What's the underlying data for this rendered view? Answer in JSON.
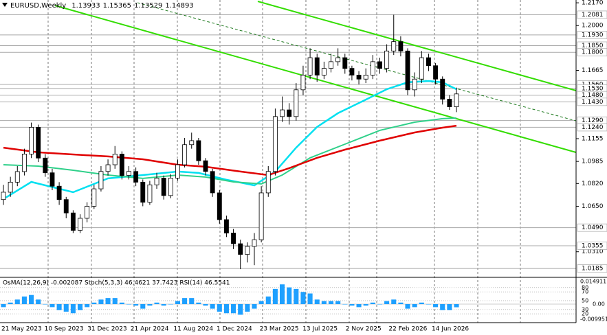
{
  "chart_data": {
    "type": "candlestick",
    "title": "EURUSD,Weekly",
    "indicator_label": "OsMA(12,26,9) -0.002087 Stoch(5,3,3) 46.4621 37.7423 RSI(14) 46.5541",
    "x_labels": [
      "21 May 2023",
      "10 Sep 2023",
      "31 Dec 2023",
      "21 Apr 2024",
      "11 Aug 2024",
      "1 Dec 2024",
      "23 Mar 2025",
      "13 Jul 2025",
      "2 Nov 2025",
      "22 Feb 2026",
      "14 Jun 2026"
    ],
    "ylim": [
      1.0124,
      1.2191
    ],
    "yticks": [
      {
        "value": 1.217,
        "label": "1.2170"
      },
      {
        "value": 1.2,
        "label": "1.2000"
      },
      {
        "value": 1.1665,
        "label": "1.1665"
      },
      {
        "value": 1.1155,
        "label": "1.1155"
      },
      {
        "value": 1.0985,
        "label": "1.0985"
      },
      {
        "value": 1.082,
        "label": "1.0820"
      },
      {
        "value": 1.065,
        "label": "1.0650"
      },
      {
        "value": 1.031,
        "label": "1.0310"
      }
    ],
    "levels": [
      {
        "value": 1.2081,
        "label": "1.2081"
      },
      {
        "value": 1.193,
        "label": "1.1930"
      },
      {
        "value": 1.185,
        "label": "1.1850"
      },
      {
        "value": 1.18,
        "label": "1.1800"
      },
      {
        "value": 1.156,
        "label": "1.1560"
      },
      {
        "value": 1.153,
        "label": "1.1530"
      },
      {
        "value": 1.148,
        "label": "1.1480"
      },
      {
        "value": 1.143,
        "label": "1.1430"
      },
      {
        "value": 1.129,
        "label": "1.1290"
      },
      {
        "value": 1.124,
        "label": "1.1240"
      },
      {
        "value": 1.049,
        "label": "1.0490"
      },
      {
        "value": 1.0355,
        "label": "1.0355"
      },
      {
        "value": 1.0185,
        "label": "1.0185"
      }
    ],
    "up_color": "#ffffff",
    "down_color": "#000000",
    "candles": [
      [
        1.07,
        1.081,
        1.066,
        1.0755
      ],
      [
        1.0755,
        1.087,
        1.072,
        1.083
      ],
      [
        1.083,
        1.095,
        1.08,
        1.0909
      ],
      [
        1.0909,
        1.108,
        1.088,
        1.104
      ],
      [
        1.104,
        1.1275,
        1.101,
        1.124
      ],
      [
        1.124,
        1.126,
        1.098,
        1.101
      ],
      [
        1.101,
        1.104,
        1.087,
        1.09
      ],
      [
        1.09,
        1.093,
        1.077,
        1.08
      ],
      [
        1.08,
        1.083,
        1.066,
        1.07
      ],
      [
        1.07,
        1.072,
        1.056,
        1.06
      ],
      [
        1.06,
        1.062,
        1.045,
        1.047
      ],
      [
        1.047,
        1.059,
        1.045,
        1.056
      ],
      [
        1.056,
        1.068,
        1.053,
        1.065
      ],
      [
        1.065,
        1.081,
        1.063,
        1.078
      ],
      [
        1.078,
        1.095,
        1.076,
        1.091
      ],
      [
        1.091,
        1.1,
        1.088,
        1.096
      ],
      [
        1.096,
        1.11,
        1.093,
        1.104
      ],
      [
        1.104,
        1.106,
        1.085,
        1.088
      ],
      [
        1.088,
        1.095,
        1.085,
        1.091
      ],
      [
        1.091,
        1.094,
        1.08,
        1.083
      ],
      [
        1.083,
        1.085,
        1.065,
        1.068
      ],
      [
        1.068,
        1.084,
        1.066,
        1.081
      ],
      [
        1.081,
        1.09,
        1.078,
        1.086
      ],
      [
        1.086,
        1.088,
        1.07,
        1.073
      ],
      [
        1.073,
        1.089,
        1.071,
        1.086
      ],
      [
        1.086,
        1.1,
        1.084,
        1.096
      ],
      [
        1.096,
        1.116,
        1.094,
        1.111
      ],
      [
        1.111,
        1.12,
        1.108,
        1.114
      ],
      [
        1.114,
        1.116,
        1.096,
        1.099
      ],
      [
        1.099,
        1.101,
        1.088,
        1.091
      ],
      [
        1.091,
        1.093,
        1.072,
        1.075
      ],
      [
        1.075,
        1.077,
        1.052,
        1.055
      ],
      [
        1.055,
        1.058,
        1.042,
        1.045
      ],
      [
        1.045,
        1.048,
        1.033,
        1.037
      ],
      [
        1.037,
        1.04,
        1.018,
        1.029
      ],
      [
        1.029,
        1.038,
        1.023,
        1.035
      ],
      [
        1.035,
        1.045,
        1.021,
        1.04
      ],
      [
        1.04,
        1.08,
        1.038,
        1.075
      ],
      [
        1.075,
        1.095,
        1.072,
        1.091
      ],
      [
        1.091,
        1.138,
        1.088,
        1.132
      ],
      [
        1.132,
        1.147,
        1.128,
        1.137
      ],
      [
        1.137,
        1.142,
        1.126,
        1.132
      ],
      [
        1.132,
        1.157,
        1.129,
        1.152
      ],
      [
        1.152,
        1.17,
        1.148,
        1.163
      ],
      [
        1.163,
        1.183,
        1.16,
        1.176
      ],
      [
        1.176,
        1.179,
        1.158,
        1.163
      ],
      [
        1.163,
        1.173,
        1.16,
        1.168
      ],
      [
        1.168,
        1.179,
        1.165,
        1.173
      ],
      [
        1.173,
        1.183,
        1.17,
        1.176
      ],
      [
        1.176,
        1.179,
        1.164,
        1.168
      ],
      [
        1.168,
        1.17,
        1.159,
        1.163
      ],
      [
        1.163,
        1.166,
        1.156,
        1.16
      ],
      [
        1.16,
        1.168,
        1.157,
        1.163
      ],
      [
        1.163,
        1.178,
        1.16,
        1.173
      ],
      [
        1.173,
        1.176,
        1.164,
        1.168
      ],
      [
        1.168,
        1.186,
        1.165,
        1.181
      ],
      [
        1.181,
        1.2081,
        1.178,
        1.188
      ],
      [
        1.188,
        1.192,
        1.177,
        1.181
      ],
      [
        1.181,
        1.183,
        1.148,
        1.152
      ],
      [
        1.152,
        1.165,
        1.147,
        1.16
      ],
      [
        1.16,
        1.181,
        1.157,
        1.176
      ],
      [
        1.176,
        1.179,
        1.166,
        1.17
      ],
      [
        1.17,
        1.172,
        1.156,
        1.16
      ],
      [
        1.16,
        1.162,
        1.141,
        1.145
      ],
      [
        1.145,
        1.148,
        1.137,
        1.1393
      ],
      [
        1.13933,
        1.15365,
        1.13529,
        1.14893
      ]
    ],
    "series": [
      {
        "color": "#00e0f0",
        "x": [
          0,
          4,
          10,
          15,
          20,
          25,
          28,
          32,
          36,
          39,
          42,
          45,
          48,
          52,
          55,
          58,
          61,
          63,
          65
        ],
        "values": [
          1.0704,
          1.0832,
          1.0755,
          1.0858,
          1.0883,
          1.0909,
          1.0899,
          1.0848,
          1.0806,
          1.0909,
          1.1088,
          1.1242,
          1.1345,
          1.1447,
          1.1524,
          1.1576,
          1.1586,
          1.1576,
          1.1524
        ]
      },
      {
        "color": "#2fd08a",
        "x": [
          0,
          5,
          10,
          15,
          20,
          25,
          29,
          33,
          37,
          40,
          44,
          49,
          54,
          59,
          63,
          65
        ],
        "values": [
          1.096,
          1.095,
          1.0919,
          1.0883,
          1.0858,
          1.0883,
          1.0868,
          1.0832,
          1.0817,
          1.0883,
          1.1012,
          1.1114,
          1.1217,
          1.1278,
          1.1304,
          1.1309
        ]
      },
      {
        "color": "#e00000",
        "x": [
          0,
          5,
          10,
          15,
          20,
          25,
          29,
          34,
          38,
          41,
          45,
          49,
          54,
          59,
          63,
          65
        ],
        "values": [
          1.1088,
          1.1053,
          1.1037,
          1.1022,
          1.1001,
          1.096,
          1.0945,
          1.0909,
          1.0883,
          1.0935,
          1.1012,
          1.1073,
          1.114,
          1.1201,
          1.1237,
          1.1252
        ]
      }
    ],
    "osma": [
      -0.002,
      0.001,
      0.003,
      0.005,
      0.006,
      0.003,
      0,
      -0.002,
      -0.004,
      -0.005,
      -0.006,
      -0.004,
      -0.002,
      0.001,
      0.003,
      0.004,
      0.004,
      0.001,
      0,
      -0.001,
      -0.003,
      -0.001,
      0.001,
      -0.001,
      0,
      0.002,
      0.004,
      0.004,
      0.001,
      -0.001,
      -0.003,
      -0.005,
      -0.006,
      -0.006,
      -0.007,
      -0.005,
      -0.003,
      0.002,
      0.005,
      0.01,
      0.013,
      0.011,
      0.01,
      0.008,
      0.007,
      0.003,
      0.002,
      0.002,
      0.002,
      0,
      -0.001,
      -0.002,
      -0.001,
      0.001,
      0,
      0.002,
      0.003,
      0.001,
      -0.003,
      -0.002,
      0.001,
      0,
      -0.002,
      -0.004,
      -0.004,
      -0.002087
    ],
    "osma_color": "#1ea0ff",
    "osma_lim": [
      -0.009951,
      0.014911
    ],
    "osma_ticks": [
      {
        "value": 0,
        "label": "0.00"
      }
    ],
    "stoch_lim": [
      0,
      100
    ],
    "stoch_levels": [
      80,
      70,
      50,
      30,
      20
    ]
  }
}
